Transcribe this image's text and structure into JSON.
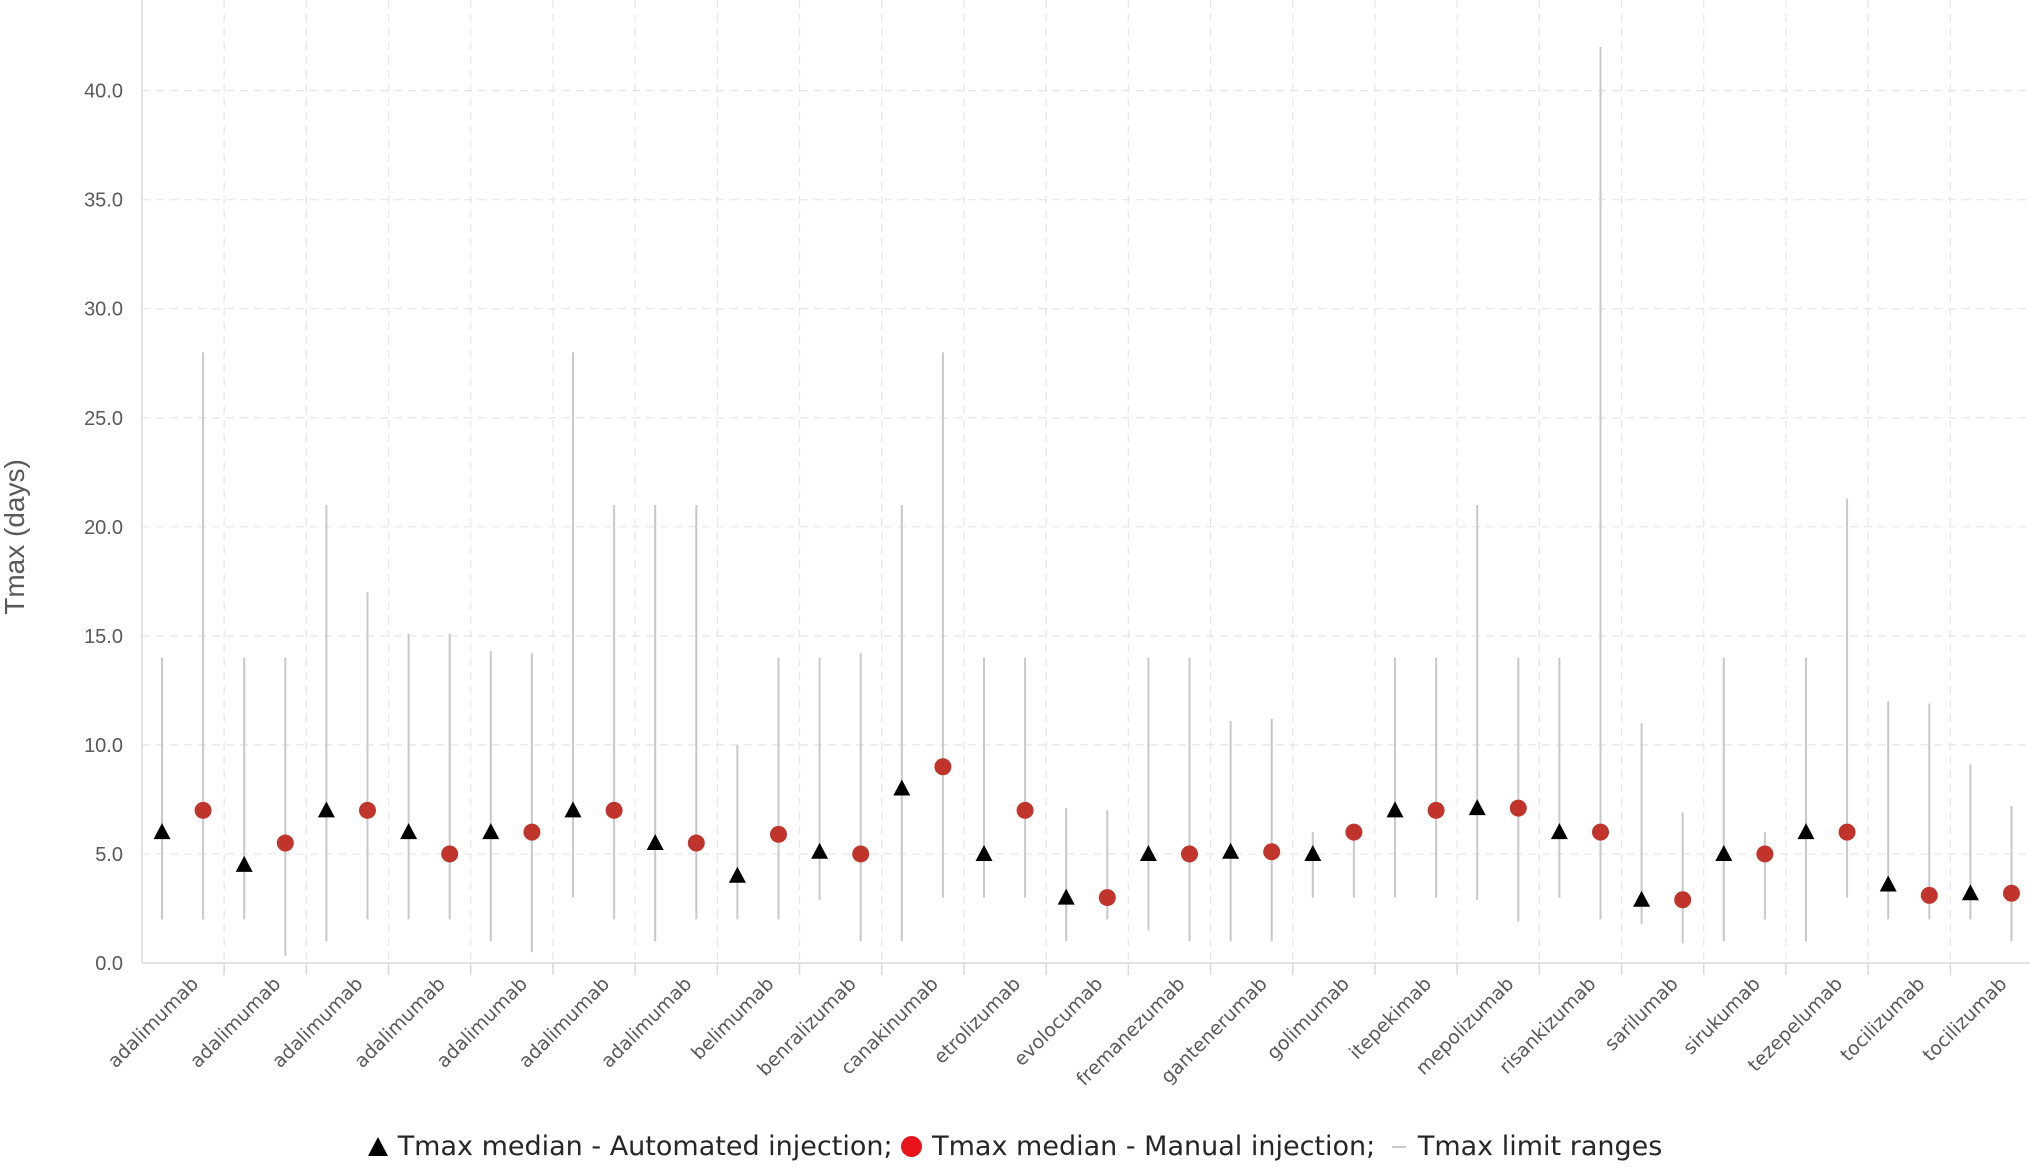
{
  "chart_data": {
    "type": "scatter",
    "ylabel": "Tmax (days)",
    "xlabel": "",
    "ylim": [
      0,
      42
    ],
    "yticks": [
      "0.0",
      "5.0",
      "10.0",
      "15.0",
      "20.0",
      "25.0",
      "30.0",
      "35.0",
      "40.0"
    ],
    "grid": true,
    "legend_position": "bottom",
    "categories": [
      "adalimumab",
      "adalimumab",
      "adalimumab",
      "adalimumab",
      "adalimumab",
      "adalimumab",
      "adalimumab",
      "belimumab",
      "benralizumab",
      "canakinumab",
      "etrolizumab",
      "evolocumab",
      "fremanezumab",
      "gantenerumab",
      "golimumab",
      "itepekimab",
      "mepolizumab",
      "risankizumab",
      "sarilumab",
      "sirukumab",
      "tezepelumab",
      "tocilizumab",
      "tocilizumab"
    ],
    "points": [
      {
        "method": "automated",
        "median": 6.0,
        "min": 2.0,
        "max": 14.0
      },
      {
        "method": "manual",
        "median": 7.0,
        "min": 2.0,
        "max": 28.0
      },
      {
        "method": "automated",
        "median": 4.5,
        "min": 2.0,
        "max": 14.0
      },
      {
        "method": "manual",
        "median": 5.5,
        "min": 0.33,
        "max": 14.0
      },
      {
        "method": "automated",
        "median": 7.0,
        "min": 1.0,
        "max": 21.0
      },
      {
        "method": "manual",
        "median": 7.0,
        "min": 2.0,
        "max": 17.0
      },
      {
        "method": "automated",
        "median": 6.0,
        "min": 2.0,
        "max": 15.1
      },
      {
        "method": "manual",
        "median": 5.0,
        "min": 2.0,
        "max": 15.1
      },
      {
        "method": "automated",
        "median": 6.0,
        "min": 1.0,
        "max": 14.3
      },
      {
        "method": "manual",
        "median": 6.0,
        "min": 0.5,
        "max": 14.2
      },
      {
        "method": "automated",
        "median": 7.0,
        "min": 3.0,
        "max": 28.0
      },
      {
        "method": "manual",
        "median": 7.0,
        "min": 2.0,
        "max": 21.0
      },
      {
        "method": "automated",
        "median": 5.5,
        "min": 1.0,
        "max": 21.0
      },
      {
        "method": "manual",
        "median": 5.5,
        "min": 2.0,
        "max": 21.0
      },
      {
        "method": "automated",
        "median": 4.0,
        "min": 2.0,
        "max": 10.0
      },
      {
        "method": "manual",
        "median": 5.9,
        "min": 2.0,
        "max": 14.0
      },
      {
        "method": "automated",
        "median": 5.1,
        "min": 2.9,
        "max": 14.0
      },
      {
        "method": "manual",
        "median": 5.0,
        "min": 1.0,
        "max": 14.2
      },
      {
        "method": "automated",
        "median": 8.0,
        "min": 1.0,
        "max": 21.0
      },
      {
        "method": "manual",
        "median": 9.0,
        "min": 3.0,
        "max": 28.0
      },
      {
        "method": "automated",
        "median": 5.0,
        "min": 3.0,
        "max": 14.0
      },
      {
        "method": "manual",
        "median": 7.0,
        "min": 3.0,
        "max": 14.0
      },
      {
        "method": "automated",
        "median": 3.0,
        "min": 1.0,
        "max": 7.1
      },
      {
        "method": "manual",
        "median": 3.0,
        "min": 2.0,
        "max": 7.0
      },
      {
        "method": "automated",
        "median": 5.0,
        "min": 1.5,
        "max": 14.0
      },
      {
        "method": "manual",
        "median": 5.0,
        "min": 1.0,
        "max": 14.0
      },
      {
        "method": "automated",
        "median": 5.1,
        "min": 1.0,
        "max": 11.1
      },
      {
        "method": "manual",
        "median": 5.1,
        "min": 1.0,
        "max": 11.2
      },
      {
        "method": "automated",
        "median": 5.0,
        "min": 3.0,
        "max": 6.0
      },
      {
        "method": "manual",
        "median": 6.0,
        "min": 3.0,
        "max": 6.0
      },
      {
        "method": "automated",
        "median": 7.0,
        "min": 3.0,
        "max": 14.0
      },
      {
        "method": "manual",
        "median": 7.0,
        "min": 3.0,
        "max": 14.0
      },
      {
        "method": "automated",
        "median": 7.1,
        "min": 2.9,
        "max": 21.0
      },
      {
        "method": "manual",
        "median": 7.1,
        "min": 1.9,
        "max": 14.0
      },
      {
        "method": "automated",
        "median": 6.0,
        "min": 3.0,
        "max": 14.0
      },
      {
        "method": "manual",
        "median": 6.0,
        "min": 2.0,
        "max": 42.0
      },
      {
        "method": "automated",
        "median": 2.9,
        "min": 1.8,
        "max": 11.0
      },
      {
        "method": "manual",
        "median": 2.9,
        "min": 0.9,
        "max": 6.9
      },
      {
        "method": "automated",
        "median": 5.0,
        "min": 1.0,
        "max": 14.0
      },
      {
        "method": "manual",
        "median": 5.0,
        "min": 2.0,
        "max": 6.0
      },
      {
        "method": "automated",
        "median": 6.0,
        "min": 1.0,
        "max": 14.0
      },
      {
        "method": "manual",
        "median": 6.0,
        "min": 3.0,
        "max": 21.3
      },
      {
        "method": "automated",
        "median": 3.6,
        "min": 2.0,
        "max": 12.0
      },
      {
        "method": "manual",
        "median": 3.1,
        "min": 2.0,
        "max": 11.9
      },
      {
        "method": "automated",
        "median": 3.2,
        "min": 2.0,
        "max": 9.1
      },
      {
        "method": "manual",
        "median": 3.2,
        "min": 1.0,
        "max": 7.2
      }
    ],
    "legend": {
      "automated": "Tmax median - Automated injection;",
      "manual": "Tmax median - Manual injection;",
      "range": "Tmax limit ranges"
    },
    "colors": {
      "automated": "#000000",
      "manual": "#c0342c",
      "range": "#c8c8c8",
      "legend_manual": "#e8131b",
      "grid": "#e6e6e6",
      "axis": "#d9d9d9",
      "text": "#595959"
    }
  }
}
